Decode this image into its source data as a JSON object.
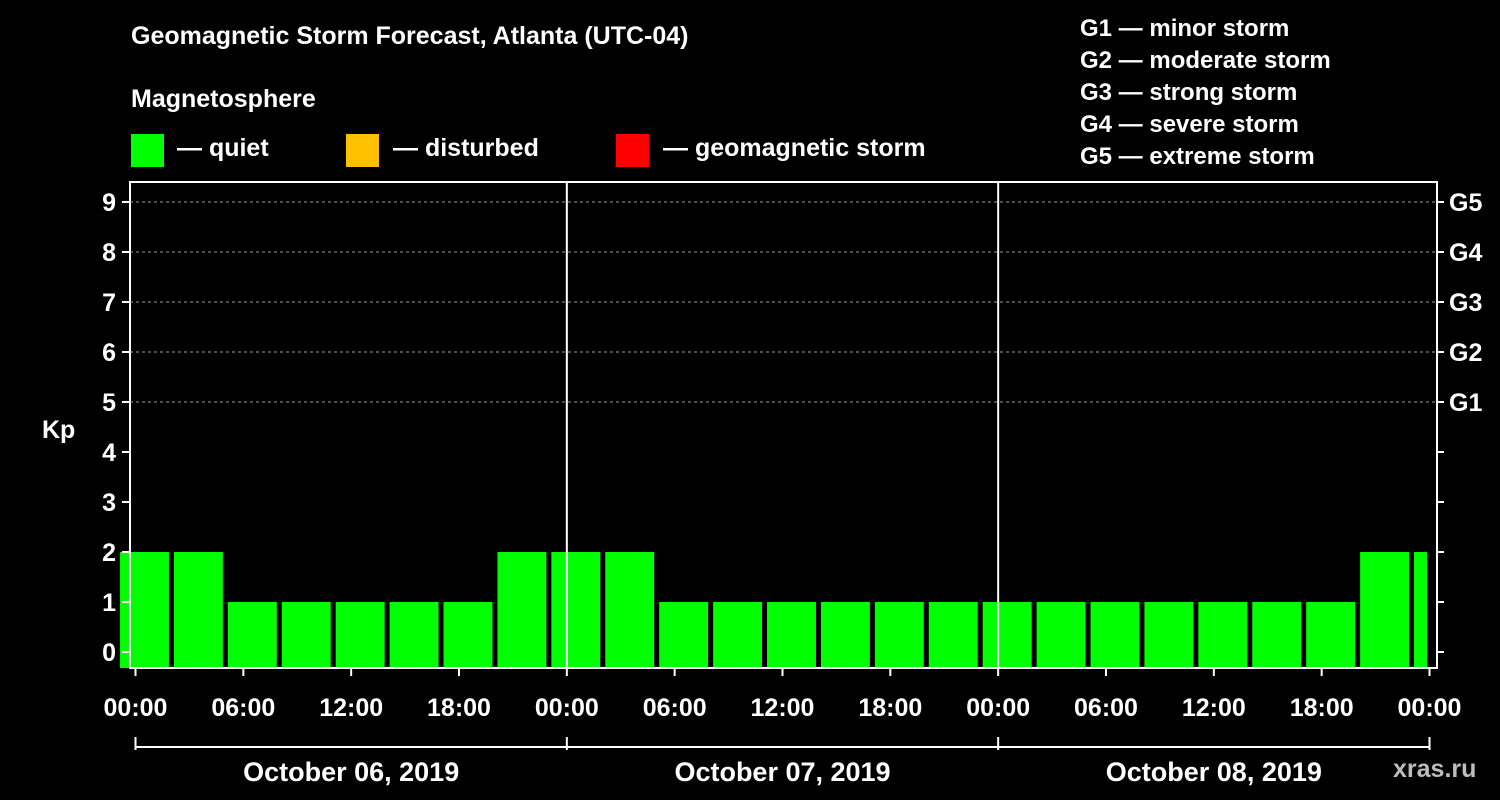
{
  "title": "Geomagnetic Storm Forecast, Atlanta (UTC-04)",
  "legend": {
    "heading": "Magnetosphere",
    "items": [
      {
        "label": "— quiet",
        "color": "#00ff00"
      },
      {
        "label": "— disturbed",
        "color": "#ffc000"
      },
      {
        "label": "— geomagnetic storm",
        "color": "#ff0000"
      }
    ]
  },
  "g_scale": [
    "G1 — minor storm",
    "G2 — moderate storm",
    "G3 — strong storm",
    "G4 — severe storm",
    "G5 — extreme storm"
  ],
  "watermark": "xras.ru",
  "chart_data": {
    "type": "bar",
    "title": "Geomagnetic Storm Forecast, Atlanta (UTC-04)",
    "ylabel": "Kp",
    "ylim": [
      0,
      9
    ],
    "yticks": [
      "0",
      "1",
      "2",
      "3",
      "4",
      "5",
      "6",
      "7",
      "8",
      "9"
    ],
    "right_axis_labels": [
      {
        "kp": 5,
        "label": "G1"
      },
      {
        "kp": 6,
        "label": "G2"
      },
      {
        "kp": 7,
        "label": "G3"
      },
      {
        "kp": 8,
        "label": "G4"
      },
      {
        "kp": 9,
        "label": "G5"
      }
    ],
    "grid": "dashed horizontal at Kp 5-9",
    "x_range_hours": [
      -1,
      71
    ],
    "xtick_labels": [
      {
        "hour": 0,
        "label": "00:00"
      },
      {
        "hour": 6,
        "label": "06:00"
      },
      {
        "hour": 12,
        "label": "12:00"
      },
      {
        "hour": 18,
        "label": "18:00"
      },
      {
        "hour": 24,
        "label": "00:00"
      },
      {
        "hour": 30,
        "label": "06:00"
      },
      {
        "hour": 36,
        "label": "12:00"
      },
      {
        "hour": 42,
        "label": "18:00"
      },
      {
        "hour": 48,
        "label": "00:00"
      },
      {
        "hour": 54,
        "label": "06:00"
      },
      {
        "hour": 60,
        "label": "12:00"
      },
      {
        "hour": 66,
        "label": "18:00"
      },
      {
        "hour": 72,
        "label": "00:00"
      }
    ],
    "days": [
      {
        "label": "October 06, 2019",
        "start_hour": 0
      },
      {
        "label": "October 07, 2019",
        "start_hour": 24
      },
      {
        "label": "October 08, 2019",
        "start_hour": 48
      }
    ],
    "bars": [
      {
        "start": -1,
        "end": 2,
        "kp": 2,
        "status": "quiet"
      },
      {
        "start": 2,
        "end": 5,
        "kp": 2,
        "status": "quiet"
      },
      {
        "start": 5,
        "end": 8,
        "kp": 1,
        "status": "quiet"
      },
      {
        "start": 8,
        "end": 11,
        "kp": 1,
        "status": "quiet"
      },
      {
        "start": 11,
        "end": 14,
        "kp": 1,
        "status": "quiet"
      },
      {
        "start": 14,
        "end": 17,
        "kp": 1,
        "status": "quiet"
      },
      {
        "start": 17,
        "end": 20,
        "kp": 1,
        "status": "quiet"
      },
      {
        "start": 20,
        "end": 23,
        "kp": 2,
        "status": "quiet"
      },
      {
        "start": 23,
        "end": 26,
        "kp": 2,
        "status": "quiet"
      },
      {
        "start": 26,
        "end": 29,
        "kp": 2,
        "status": "quiet"
      },
      {
        "start": 29,
        "end": 32,
        "kp": 1,
        "status": "quiet"
      },
      {
        "start": 32,
        "end": 35,
        "kp": 1,
        "status": "quiet"
      },
      {
        "start": 35,
        "end": 38,
        "kp": 1,
        "status": "quiet"
      },
      {
        "start": 38,
        "end": 41,
        "kp": 1,
        "status": "quiet"
      },
      {
        "start": 41,
        "end": 44,
        "kp": 1,
        "status": "quiet"
      },
      {
        "start": 44,
        "end": 47,
        "kp": 1,
        "status": "quiet"
      },
      {
        "start": 47,
        "end": 50,
        "kp": 1,
        "status": "quiet"
      },
      {
        "start": 50,
        "end": 53,
        "kp": 1,
        "status": "quiet"
      },
      {
        "start": 53,
        "end": 56,
        "kp": 1,
        "status": "quiet"
      },
      {
        "start": 56,
        "end": 59,
        "kp": 1,
        "status": "quiet"
      },
      {
        "start": 59,
        "end": 62,
        "kp": 1,
        "status": "quiet"
      },
      {
        "start": 62,
        "end": 65,
        "kp": 1,
        "status": "quiet"
      },
      {
        "start": 65,
        "end": 68,
        "kp": 1,
        "status": "quiet"
      },
      {
        "start": 68,
        "end": 71,
        "kp": 2,
        "status": "quiet"
      },
      {
        "start": 71,
        "end": 72,
        "kp": 2,
        "status": "quiet"
      }
    ]
  }
}
